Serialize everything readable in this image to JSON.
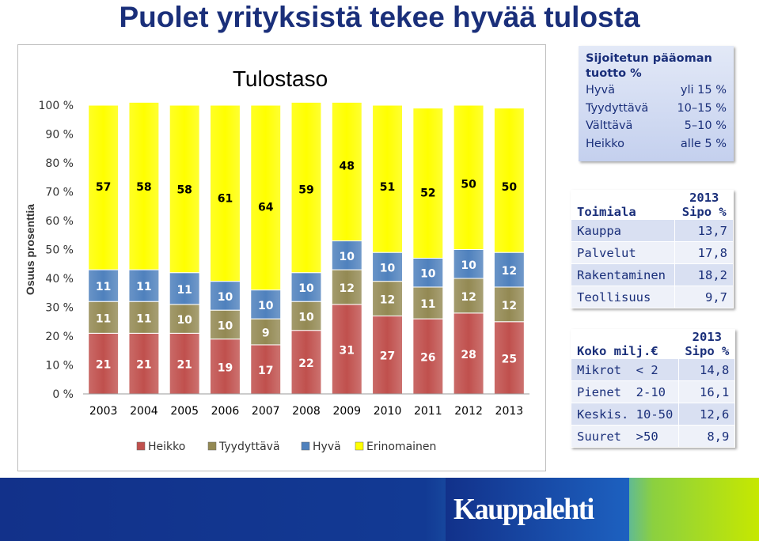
{
  "title": "Puolet yrityksistä tekee hyvää tulosta",
  "chart_data": {
    "type": "bar",
    "stacked": true,
    "title": "Tulostaso",
    "ylabel": "Osuus prosenttia",
    "ylim": [
      0,
      100
    ],
    "yticks": [
      "0 %",
      "10 %",
      "20 %",
      "30 %",
      "40 %",
      "50 %",
      "60 %",
      "70 %",
      "80 %",
      "90 %",
      "100 %"
    ],
    "categories": [
      "2003",
      "2004",
      "2005",
      "2006",
      "2007",
      "2008",
      "2009",
      "2010",
      "2011",
      "2012",
      "2013"
    ],
    "series": [
      {
        "name": "Heikko",
        "color": "#c0504d",
        "values": [
          21,
          21,
          21,
          19,
          17,
          22,
          31,
          27,
          26,
          28,
          25
        ]
      },
      {
        "name": "Tyydyttävä",
        "color": "#938953",
        "values": [
          11,
          11,
          10,
          10,
          9,
          10,
          12,
          12,
          11,
          12,
          12
        ]
      },
      {
        "name": "Hyvä",
        "color": "#4f81bd",
        "values": [
          11,
          11,
          11,
          10,
          10,
          10,
          10,
          10,
          10,
          10,
          12
        ]
      },
      {
        "name": "Erinomainen",
        "color": "#ffff00",
        "values": [
          57,
          58,
          58,
          61,
          64,
          59,
          48,
          51,
          52,
          50,
          50
        ]
      }
    ],
    "legend_position": "bottom"
  },
  "rates": {
    "title": "Sijoitetun pääoman tuotto %",
    "rows": [
      {
        "label": "Hyvä",
        "value": "yli 15 %"
      },
      {
        "label": "Tyydyttävä",
        "value": "10–15 %"
      },
      {
        "label": "Välttävä",
        "value": "5–10 %"
      },
      {
        "label": "Heikko",
        "value": "alle 5 %"
      }
    ]
  },
  "industry": {
    "header_label": "Toimiala",
    "header_year": "2013",
    "header_col": "Sipo %",
    "rows": [
      {
        "label": "Kauppa",
        "value": "13,7"
      },
      {
        "label": "Palvelut",
        "value": "17,8"
      },
      {
        "label": "Rakentaminen",
        "value": "18,2"
      },
      {
        "label": "Teollisuus",
        "value": "9,7"
      }
    ]
  },
  "size": {
    "header_label": "Koko milj.€",
    "header_year": "2013",
    "header_col": "Sipo %",
    "rows": [
      {
        "label": "Mikrot  < 2",
        "value": "14,8"
      },
      {
        "label": "Pienet  2-10",
        "value": "16,1"
      },
      {
        "label": "Keskis. 10-50",
        "value": "12,6"
      },
      {
        "label": "Suuret  >50",
        "value": "8,9"
      }
    ]
  },
  "logo": "Kauppalehti"
}
